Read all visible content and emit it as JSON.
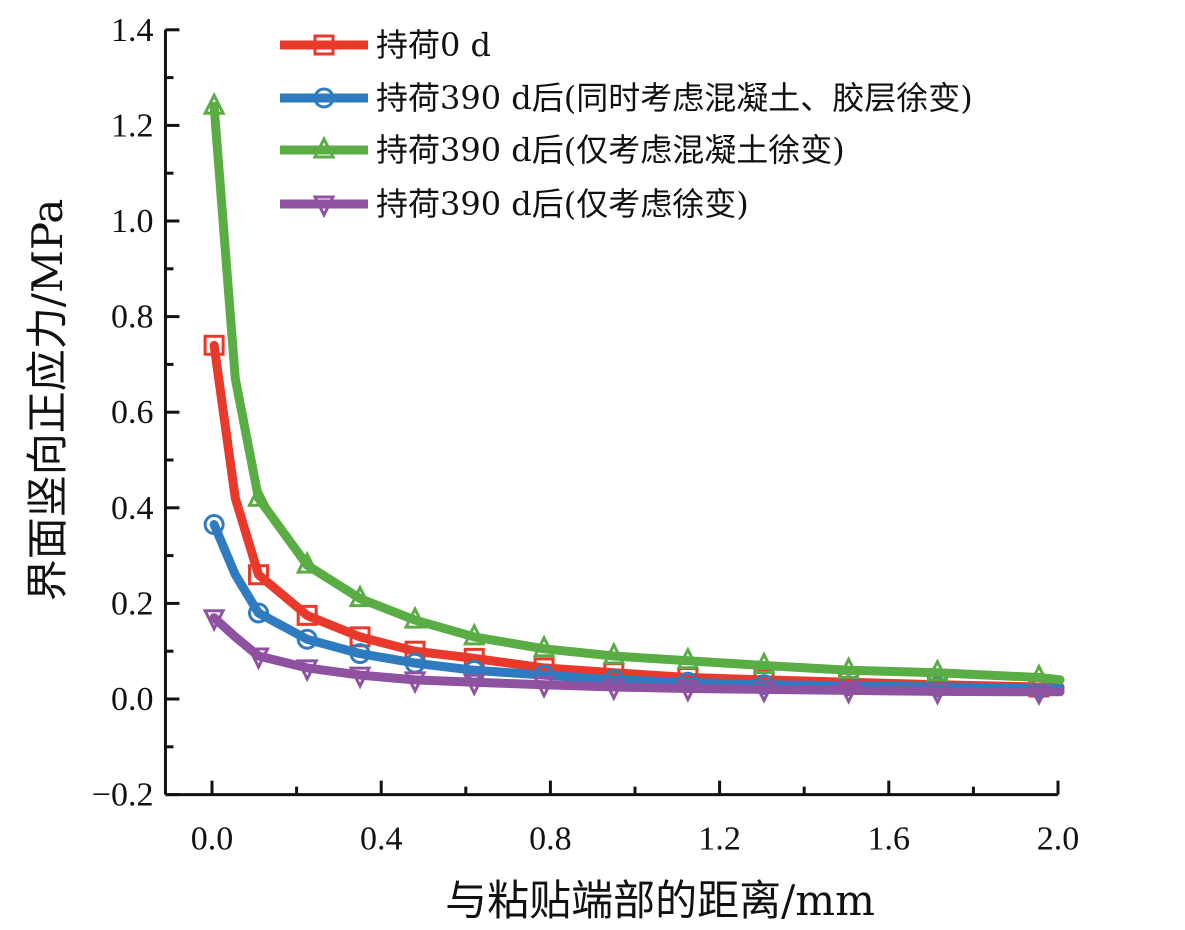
{
  "chart_data": {
    "type": "line",
    "title": "",
    "xlabel": "与粘贴端部的距离/mm",
    "ylabel": "界面竖向正应力/MPa",
    "xlim": [
      -0.11,
      2.0
    ],
    "ylim": [
      -0.2,
      1.4
    ],
    "xticks": [
      "0.0",
      "0.4",
      "0.8",
      "1.2",
      "1.6",
      "2.0"
    ],
    "xtick_values": [
      0.0,
      0.4,
      0.8,
      1.2,
      1.6,
      2.0
    ],
    "yticks": [
      "−0.2",
      "0.0",
      "0.2",
      "0.4",
      "0.6",
      "0.8",
      "1.0",
      "1.2",
      "1.4"
    ],
    "ytick_values": [
      -0.2,
      0.0,
      0.2,
      0.4,
      0.6,
      0.8,
      1.0,
      1.2,
      1.4
    ],
    "grid": false,
    "legend_position": "top-right",
    "x": [
      0.0,
      0.05,
      0.105,
      0.22,
      0.345,
      0.475,
      0.615,
      0.78,
      0.945,
      1.12,
      1.3,
      1.5,
      1.71,
      1.95,
      2.0
    ],
    "series": [
      {
        "name": "持荷0 d",
        "color": "#e8392b",
        "marker": "square",
        "values": [
          0.74,
          0.42,
          0.26,
          0.175,
          0.13,
          0.1,
          0.085,
          0.065,
          0.055,
          0.045,
          0.04,
          0.035,
          0.03,
          0.025,
          0.025
        ]
      },
      {
        "name": "持荷390 d后(同时考虑混凝土、胶层徐变)",
        "color": "#2f7bbf",
        "marker": "circle",
        "values": [
          0.365,
          0.26,
          0.18,
          0.125,
          0.095,
          0.075,
          0.06,
          0.05,
          0.04,
          0.035,
          0.03,
          0.028,
          0.025,
          0.022,
          0.022
        ]
      },
      {
        "name": "持荷390 d后(仅考虑混凝土徐变)",
        "color": "#5aac44",
        "marker": "triangle-up",
        "values": [
          1.24,
          0.67,
          0.42,
          0.28,
          0.21,
          0.165,
          0.13,
          0.105,
          0.09,
          0.08,
          0.07,
          0.06,
          0.055,
          0.045,
          0.04
        ]
      },
      {
        "name": "持荷390 d后(仅考虑徐变)",
        "color": "#8e52a1",
        "marker": "triangle-down",
        "values": [
          0.17,
          0.13,
          0.09,
          0.065,
          0.05,
          0.04,
          0.035,
          0.03,
          0.025,
          0.022,
          0.02,
          0.018,
          0.016,
          0.015,
          0.015
        ]
      }
    ],
    "marker_indices": [
      0,
      2,
      3,
      4,
      5,
      6,
      7,
      8,
      9,
      10,
      11,
      12,
      13
    ]
  }
}
